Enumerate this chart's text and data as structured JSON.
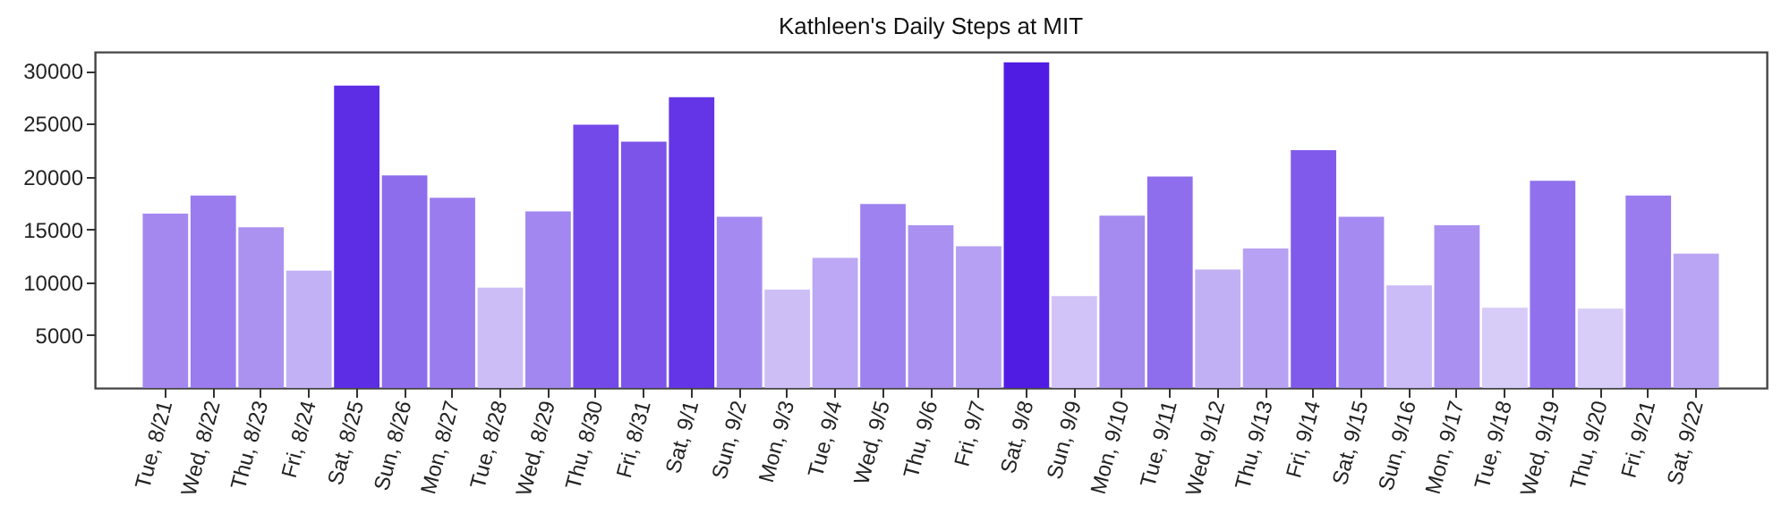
{
  "chart_data": {
    "type": "bar",
    "title": "Kathleen's Daily Steps at MIT",
    "categories": [
      "Tue, 8/21",
      "Wed, 8/22",
      "Thu, 8/23",
      "Fri, 8/24",
      "Sat, 8/25",
      "Sun, 8/26",
      "Mon, 8/27",
      "Tue, 8/28",
      "Wed, 8/29",
      "Thu, 8/30",
      "Fri, 8/31",
      "Sat, 9/1",
      "Sun, 9/2",
      "Mon, 9/3",
      "Tue, 9/4",
      "Wed, 9/5",
      "Thu, 9/6",
      "Fri, 9/7",
      "Sat, 9/8",
      "Sun, 9/9",
      "Mon, 9/10",
      "Tue, 9/11",
      "Wed, 9/12",
      "Thu, 9/13",
      "Fri, 9/14",
      "Sat, 9/15",
      "Sun, 9/16",
      "Mon, 9/17",
      "Tue, 9/18",
      "Wed, 9/19",
      "Thu, 9/20",
      "Fri, 9/21",
      "Sat, 9/22"
    ],
    "values": [
      16500,
      18200,
      15200,
      11100,
      28600,
      20100,
      18000,
      9500,
      16700,
      24900,
      23300,
      27500,
      16200,
      9300,
      12300,
      17400,
      15400,
      13400,
      30800,
      8700,
      16300,
      20000,
      11200,
      13200,
      22500,
      16200,
      9700,
      15400,
      7600,
      19600,
      7500,
      18200,
      12700
    ],
    "colors": [
      "#a488f0",
      "#9a7cef",
      "#ab92f1",
      "#c3b1f5",
      "#5d2de6",
      "#8e6ded",
      "#9b7cef",
      "#cdbdf6",
      "#a287f0",
      "#7349e9",
      "#7c54ea",
      "#6335e7",
      "#a58bf1",
      "#cdbef6",
      "#bca8f4",
      "#9e82f0",
      "#aa90f1",
      "#b6a0f3",
      "#501ce4",
      "#d1c3f7",
      "#a58af0",
      "#8f6eed",
      "#c2b0f5",
      "#b7a1f3",
      "#805beb",
      "#a58bf1",
      "#cbbbf6",
      "#aa90f1",
      "#d7cbf8",
      "#9170ee",
      "#d8ccf8",
      "#9a7cef",
      "#baa5f4"
    ],
    "ylim": [
      0,
      31800
    ],
    "yticks": [
      5000,
      10000,
      15000,
      20000,
      25000,
      30000
    ],
    "grid": false
  }
}
